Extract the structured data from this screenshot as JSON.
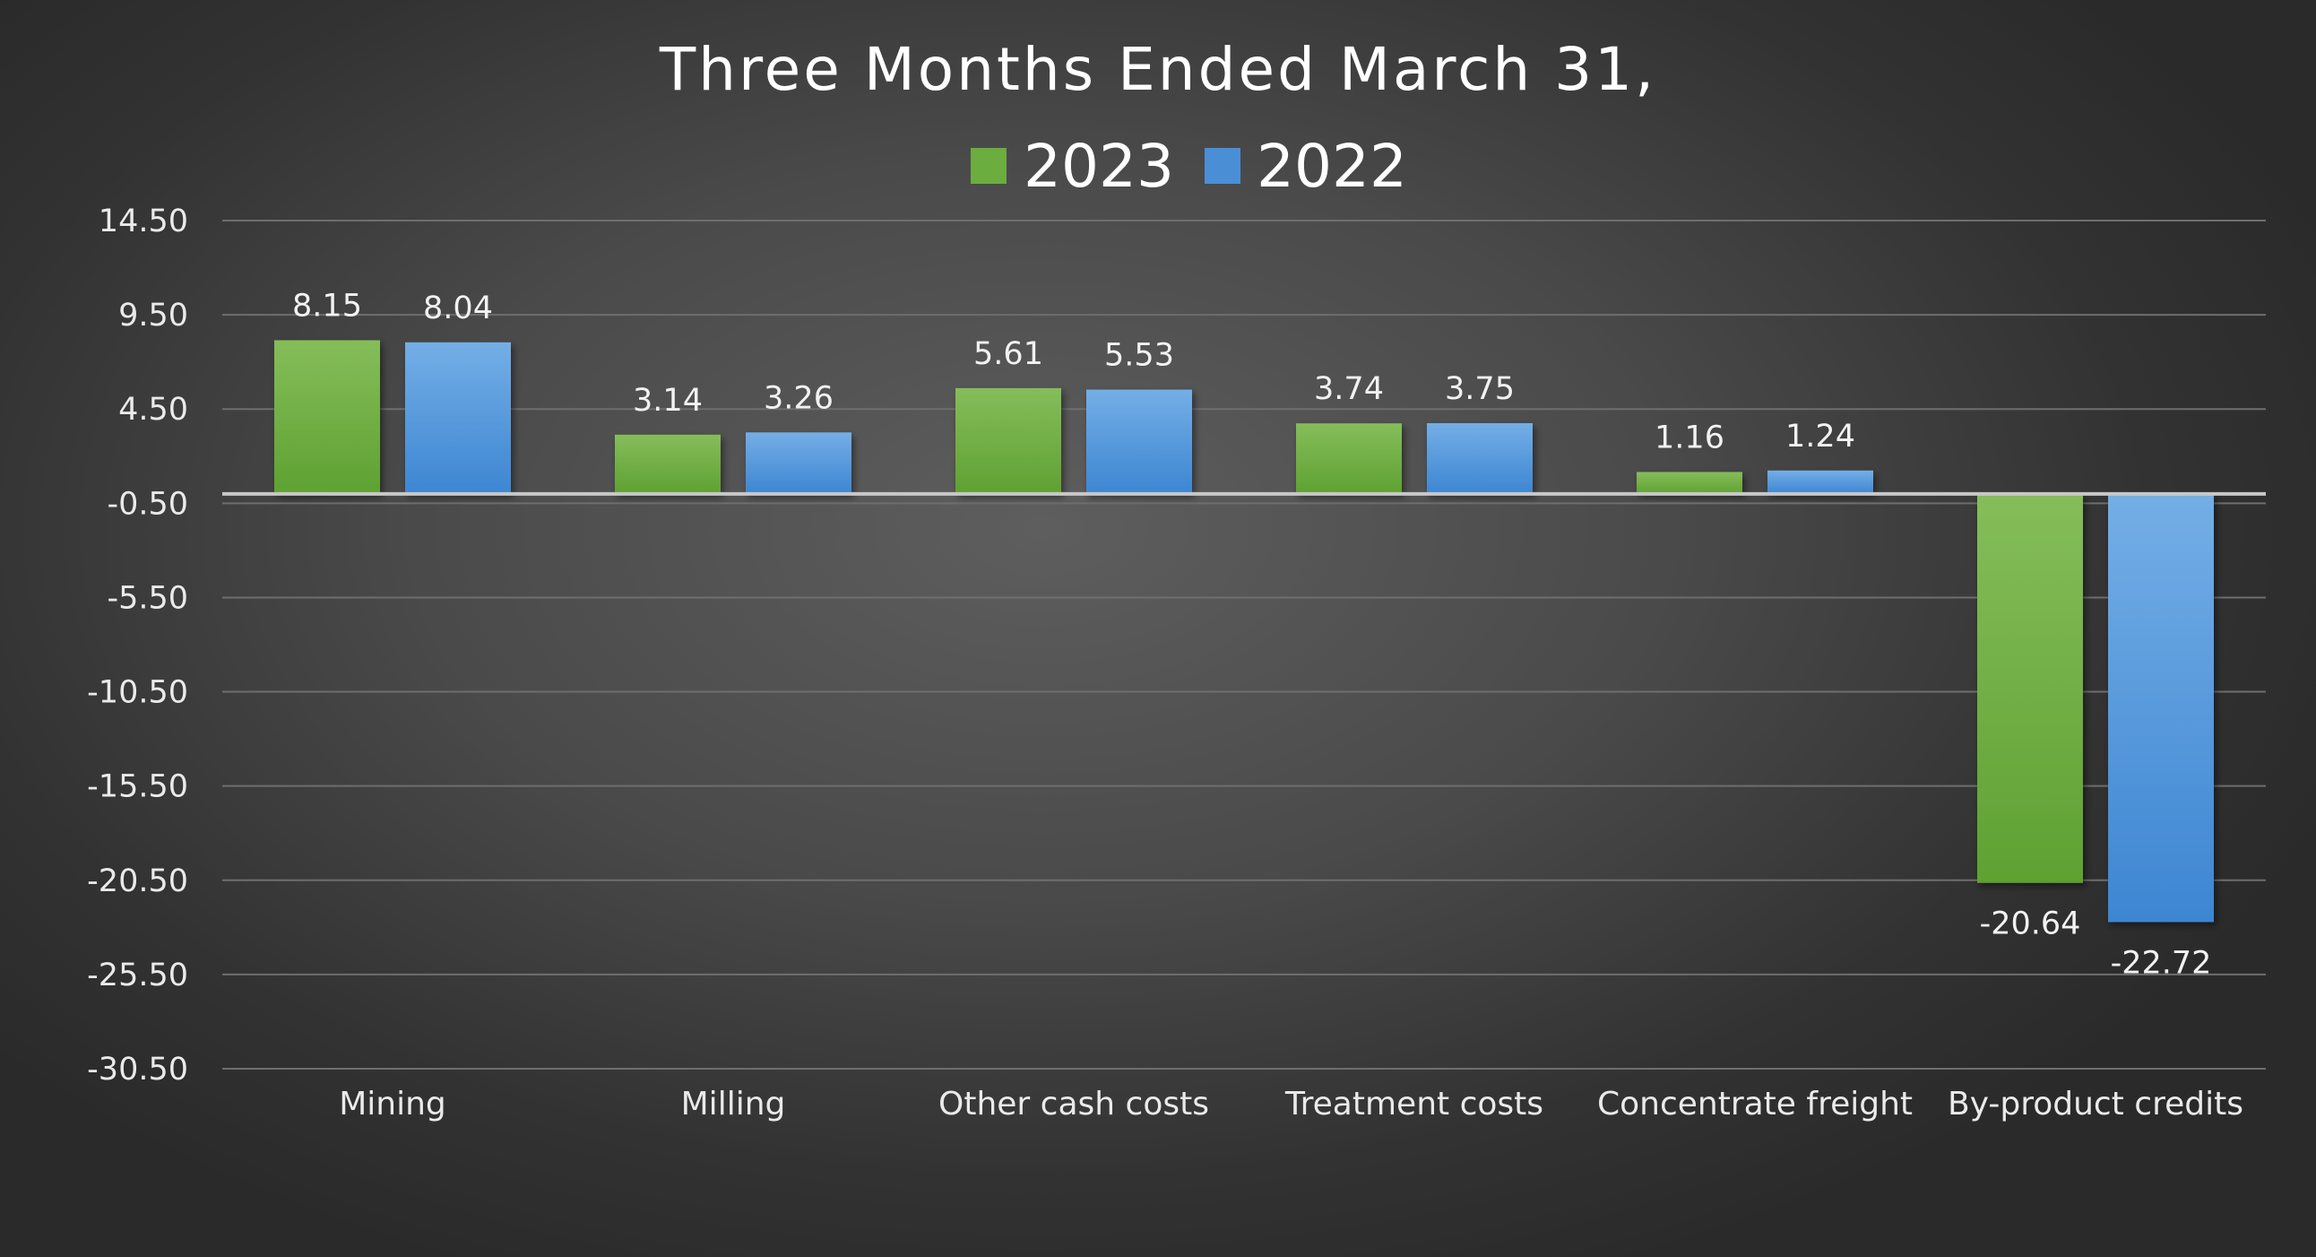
{
  "chart_data": {
    "type": "bar",
    "title": "Three Months Ended March 31,",
    "xlabel": "",
    "ylabel": "",
    "categories": [
      "Mining",
      "Milling",
      "Other cash costs",
      "Treatment costs",
      "Concentrate freight",
      "By-product credits"
    ],
    "series": [
      {
        "name": "2023",
        "color": "#6bad3f",
        "values": [
          8.15,
          3.14,
          5.61,
          3.74,
          1.16,
          -20.64
        ]
      },
      {
        "name": "2022",
        "color": "#4a8fd6",
        "values": [
          8.04,
          3.26,
          5.53,
          3.75,
          1.24,
          -22.72
        ]
      }
    ],
    "value_labels": [
      [
        "8.15",
        "3.14",
        "5.61",
        "3.74",
        "1.16",
        "-20.64"
      ],
      [
        "8.04",
        "3.26",
        "5.53",
        "3.75",
        "1.24",
        "-22.72"
      ]
    ],
    "yticks": [
      "14.50",
      "9.50",
      "4.50",
      "-0.50",
      "-5.50",
      "-10.50",
      "-15.50",
      "-20.50",
      "-25.50",
      "-30.50"
    ],
    "ylim": [
      -30.5,
      14.5
    ],
    "grid": true,
    "legend_position": "top-center"
  }
}
